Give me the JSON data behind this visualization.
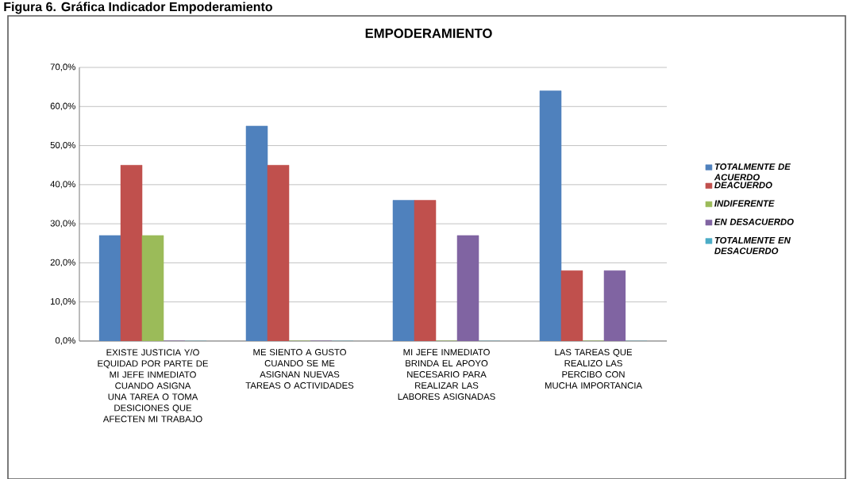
{
  "chart_data": {
    "type": "bar",
    "title": "EMPODERAMIENTO",
    "annotations": [
      "Figura 6. Gráfica Indicador Empoderamiento"
    ],
    "categories": [
      "EXISTE JUSTICIA Y/O EQUIDAD POR PARTE DE MI JEFE INMEDIATO CUANDO ASIGNA UNA TAREA O TOMA DESICIONES QUE AFECTEN MI TRABAJO",
      "ME SIENTO A GUSTO CUANDO SE ME ASIGNAN NUEVAS TAREAS O ACTIVIDADES",
      "MI JEFE INMEDIATO BRINDA EL APOYO NECESARIO PARA REALIZAR LAS LABORES ASIGNADAS",
      "LAS TAREAS QUE REALIZO LAS PERCIBO CON MUCHA IMPORTANCIA"
    ],
    "series": [
      {
        "name": "TOTALMENTE DE ACUERDO",
        "color": "#4f81bd",
        "values": [
          27,
          55,
          36,
          64
        ]
      },
      {
        "name": "DEACUERDO",
        "color": "#c0504d",
        "values": [
          45,
          45,
          36,
          18
        ]
      },
      {
        "name": "INDIFERENTE",
        "color": "#9bbb59",
        "values": [
          27,
          0,
          0,
          0
        ]
      },
      {
        "name": "EN DESACUERDO",
        "color": "#8064a2",
        "values": [
          0,
          0,
          27,
          18
        ]
      },
      {
        "name": "TOTALMENTE EN DESACUERDO",
        "color": "#4bacc6",
        "values": [
          0,
          0,
          0,
          0
        ]
      }
    ],
    "ylim": [
      0,
      70
    ],
    "yticks": [
      {
        "value": 0,
        "label": "0,0%"
      },
      {
        "value": 10,
        "label": "10,0%"
      },
      {
        "value": 20,
        "label": "20,0%"
      },
      {
        "value": 30,
        "label": "30,0%"
      },
      {
        "value": 40,
        "label": "40,0%"
      },
      {
        "value": 50,
        "label": "50,0%"
      },
      {
        "value": 60,
        "label": "60,0%"
      },
      {
        "value": 70,
        "label": "70,0%"
      }
    ],
    "grid": "y",
    "legend": "right"
  }
}
